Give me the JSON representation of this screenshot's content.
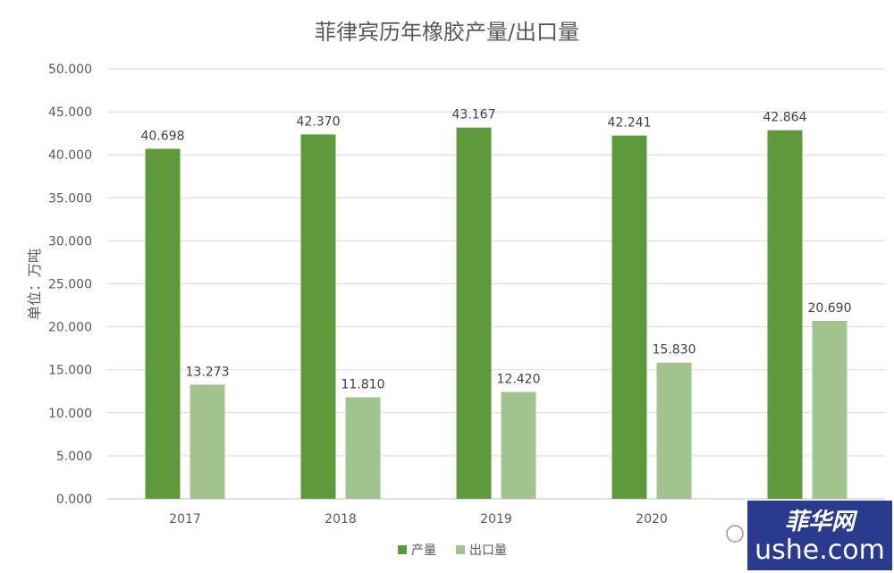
{
  "chart_data": {
    "type": "bar",
    "title": "菲律宾历年橡胶产量/出口量",
    "ylabel": "单位：万吨",
    "xlabel": "",
    "categories": [
      "2017",
      "2018",
      "2019",
      "2020",
      ""
    ],
    "series": [
      {
        "name": "产量",
        "color": "#5e9a3c",
        "values": [
          40.698,
          42.37,
          43.167,
          42.241,
          42.864
        ]
      },
      {
        "name": "出口量",
        "color": "#a1c48f",
        "values": [
          13.273,
          11.81,
          12.42,
          15.83,
          20.69
        ]
      }
    ],
    "ylim": [
      0,
      50
    ],
    "yticks": [
      "0.000",
      "5.000",
      "10.000",
      "15.000",
      "20.000",
      "25.000",
      "30.000",
      "35.000",
      "40.000",
      "45.000",
      "50.000"
    ],
    "data_labels": [
      [
        "40.698",
        "42.370",
        "43.167",
        "42.241",
        "42.864"
      ],
      [
        "13.273",
        "11.810",
        "12.420",
        "15.830",
        "20.690"
      ]
    ],
    "grid": true,
    "legend": "bottom"
  },
  "watermark": {
    "text": "菲华网",
    "domain": "ushe.com",
    "background": "#2a3a8c",
    "text_color": "#ffffff"
  }
}
